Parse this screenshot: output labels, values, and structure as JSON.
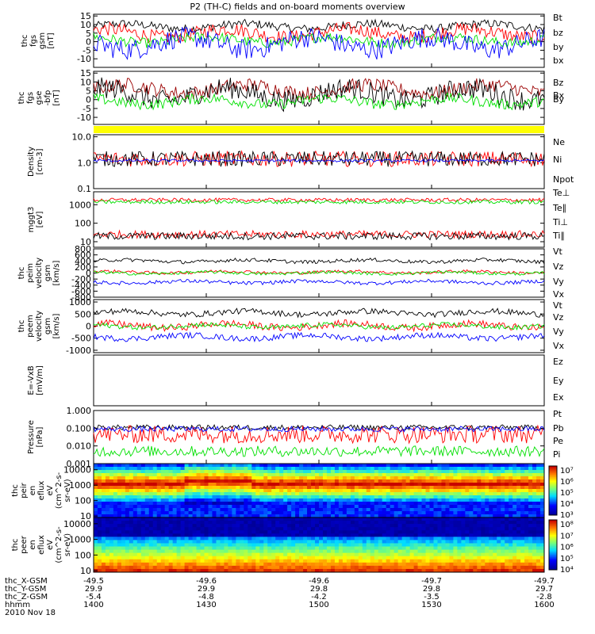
{
  "title": "P2 (TH-C) fields and on-board moments overview",
  "colors": {
    "black": "#000000",
    "red": "#ff0000",
    "green": "#00e000",
    "blue": "#0000ff",
    "darkred": "#9b0000",
    "yellow": "#ffff00"
  },
  "chart_data": [
    {
      "id": "p1",
      "type": "line",
      "ylabel": [
        "thc",
        "fgs",
        "gsm",
        "[nT]"
      ],
      "yticks": [
        -10,
        -5,
        0,
        5,
        10,
        15
      ],
      "ylim": [
        -15,
        16
      ],
      "log": false,
      "series": [
        {
          "name": "Bt",
          "color": "black",
          "level": 9,
          "noise": 2.5
        },
        {
          "name": "bz",
          "color": "red",
          "level": 5,
          "noise": 4
        },
        {
          "name": "by",
          "color": "green",
          "level": 1,
          "noise": 3
        },
        {
          "name": "bx",
          "color": "blue",
          "level": -1,
          "noise": 6
        }
      ]
    },
    {
      "id": "p2",
      "type": "line",
      "ylabel": [
        "thc",
        "fgs",
        "gse",
        "-bfp",
        "[nT]"
      ],
      "yticks": [
        -10,
        -5,
        0,
        5,
        10,
        15
      ],
      "ylim": [
        -14,
        16
      ],
      "log": false,
      "series": [
        {
          "name": "Bz",
          "color": "darkred",
          "level": 6,
          "noise": 4
        },
        {
          "name": "Bx",
          "color": "black",
          "level": 3,
          "noise": 6
        },
        {
          "name": "By",
          "color": "green",
          "level": -1,
          "noise": 3
        }
      ]
    },
    {
      "id": "p3",
      "type": "line",
      "ylabel": [
        "Density",
        "[cm-3]"
      ],
      "yticks": [
        "0.1",
        "1.0",
        "10.0"
      ],
      "ylim": [
        0.1,
        12
      ],
      "log": true,
      "series": [
        {
          "name": "Ne",
          "color": "red",
          "level": 1.4,
          "noise": 0.3
        },
        {
          "name": "Ni",
          "color": "black",
          "level": 1.4,
          "noise": 0.3
        },
        {
          "name": "Npot",
          "color": "blue",
          "level": 1.2,
          "noise": 0.05
        }
      ]
    },
    {
      "id": "p4",
      "type": "line",
      "ylabel": [
        "mggt3",
        "[eV]"
      ],
      "yticks": [
        "10",
        "100",
        "1000"
      ],
      "ylim": [
        5,
        5000
      ],
      "log": true,
      "series": [
        {
          "name": "Te⊥",
          "color": "red",
          "level": 25,
          "noise": 0.2
        },
        {
          "name": "Te∥",
          "color": "black",
          "level": 20,
          "noise": 0.2
        },
        {
          "name": "Ti⊥",
          "color": "red",
          "level": 1800,
          "noise": 0.1
        },
        {
          "name": "Ti∥",
          "color": "green",
          "level": 1400,
          "noise": 0.1
        }
      ]
    },
    {
      "id": "p5",
      "type": "line",
      "ylabel": [
        "thc",
        "peim",
        "velocity",
        "gsm",
        "[km/s]"
      ],
      "yticks": [
        -800,
        -600,
        -400,
        -200,
        0,
        200,
        400,
        600,
        800
      ],
      "ylim": [
        -800,
        800
      ],
      "log": false,
      "series": [
        {
          "name": "Vt",
          "color": "black",
          "level": 400,
          "noise": 60
        },
        {
          "name": "Vz",
          "color": "red",
          "level": 30,
          "noise": 50
        },
        {
          "name": "Vy",
          "color": "green",
          "level": 0,
          "noise": 50
        },
        {
          "name": "Vx",
          "color": "blue",
          "level": -300,
          "noise": 60
        }
      ]
    },
    {
      "id": "p6",
      "type": "line",
      "ylabel": [
        "thc",
        "peem",
        "velocity",
        "gsm",
        "[km/s]"
      ],
      "yticks": [
        -1000,
        -500,
        0,
        500,
        1000
      ],
      "ylim": [
        -1100,
        1100
      ],
      "log": false,
      "series": [
        {
          "name": "Vt",
          "color": "black",
          "level": 550,
          "noise": 120
        },
        {
          "name": "Vz",
          "color": "red",
          "level": 20,
          "noise": 150
        },
        {
          "name": "Vy",
          "color": "green",
          "level": 0,
          "noise": 100
        },
        {
          "name": "Vx",
          "color": "blue",
          "level": -450,
          "noise": 120
        }
      ]
    },
    {
      "id": "p7",
      "type": "line",
      "ylabel": [
        "E=-VxB",
        "[mV/m]"
      ],
      "yticks": [],
      "ylim": [
        0,
        1
      ],
      "log": false,
      "series": [
        {
          "name": "Ez",
          "color": "red"
        },
        {
          "name": "Ey",
          "color": "green"
        },
        {
          "name": "Ex",
          "color": "blue"
        }
      ]
    },
    {
      "id": "p8",
      "type": "line",
      "ylabel": [
        "Pressure",
        "[nPa]"
      ],
      "yticks": [
        "0.001",
        "0.010",
        "0.100",
        "1.000"
      ],
      "ylim": [
        0.001,
        1
      ],
      "log": true,
      "series": [
        {
          "name": "Pt",
          "color": "black",
          "level": 0.11,
          "noise": 0.15
        },
        {
          "name": "Pb",
          "color": "red",
          "level": 0.045,
          "noise": 0.5
        },
        {
          "name": "Pe",
          "color": "green",
          "level": 0.005,
          "noise": 0.3
        },
        {
          "name": "Pi",
          "color": "blue",
          "level": 0.09,
          "noise": 0.15
        }
      ]
    },
    {
      "id": "s1",
      "type": "heatmap",
      "ylabel": [
        "thc",
        "peir",
        "en",
        "eflux",
        "eV",
        "(cm^2-s-",
        "sr-eV)"
      ],
      "yticks": [
        "10",
        "100",
        "1000",
        "10000"
      ],
      "cbar": [
        "10⁷",
        "10⁶",
        "10⁵",
        "10⁴",
        "10³"
      ]
    },
    {
      "id": "s2",
      "type": "heatmap",
      "ylabel": [
        "thc",
        "peer",
        "en",
        "eflux",
        "eV",
        "(cm^2-s-",
        "sr-eV)"
      ],
      "yticks": [
        "10",
        "100",
        "1000",
        "10000"
      ],
      "cbar": [
        "10⁸",
        "10⁷",
        "10⁶",
        "10⁵",
        "10⁴"
      ]
    }
  ],
  "xaxis": {
    "rows": [
      {
        "label": "thc_X-GSM",
        "values": [
          "-49.5",
          "-49.6",
          "-49.6",
          "-49.7",
          "-49.7"
        ]
      },
      {
        "label": "thc_Y-GSM",
        "values": [
          "29.9",
          "29.9",
          "29.8",
          "29.8",
          "29.7"
        ]
      },
      {
        "label": "thc_Z-GSM",
        "values": [
          "-5.4",
          "-4.8",
          "-4.2",
          "-3.5",
          "-2.8"
        ]
      },
      {
        "label": "hhmm",
        "values": [
          "1400",
          "1430",
          "1500",
          "1530",
          "1600"
        ]
      }
    ],
    "date": "2010 Nov 18"
  }
}
